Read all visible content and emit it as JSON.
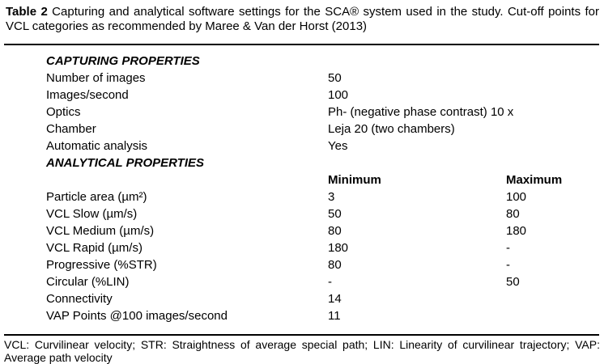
{
  "caption": {
    "label": "Table 2",
    "text": " Capturing and analytical software settings for the SCA® system used in the study. Cut-off points for VCL categories as recommended by Maree & Van der Horst (2013)"
  },
  "capturing": {
    "header": "CAPTURING PROPERTIES",
    "rows": [
      {
        "label": "Number of images",
        "value": "50"
      },
      {
        "label": "Images/second",
        "value": "100"
      },
      {
        "label": "Optics",
        "value": "Ph- (negative phase contrast) 10 x"
      },
      {
        "label": "Chamber",
        "value": "Leja 20 (two chambers)"
      },
      {
        "label": "Automatic analysis",
        "value": "Yes"
      }
    ]
  },
  "analytical": {
    "header": "ANALYTICAL PROPERTIES",
    "min_header": "Minimum",
    "max_header": "Maximum",
    "rows": [
      {
        "label": "Particle area (µm²)",
        "min": "3",
        "max": "100"
      },
      {
        "label": "VCL Slow (µm/s)",
        "min": "50",
        "max": "80"
      },
      {
        "label": "VCL Medium (µm/s)",
        "min": "80",
        "max": "180"
      },
      {
        "label": "VCL Rapid (µm/s)",
        "min": "180",
        "max": "-"
      },
      {
        "label": "Progressive (%STR)",
        "min": "80",
        "max": "-"
      },
      {
        "label": "Circular (%LIN)",
        "min": "-",
        "max": "50"
      },
      {
        "label": "Connectivity",
        "min": "14",
        "max": ""
      },
      {
        "label": "VAP Points @100 images/second",
        "min": "11",
        "max": ""
      }
    ]
  },
  "footnote": "VCL: Curvilinear velocity; STR: Straightness of average special path; LIN: Linearity of curvilinear trajectory; VAP: Average path velocity"
}
